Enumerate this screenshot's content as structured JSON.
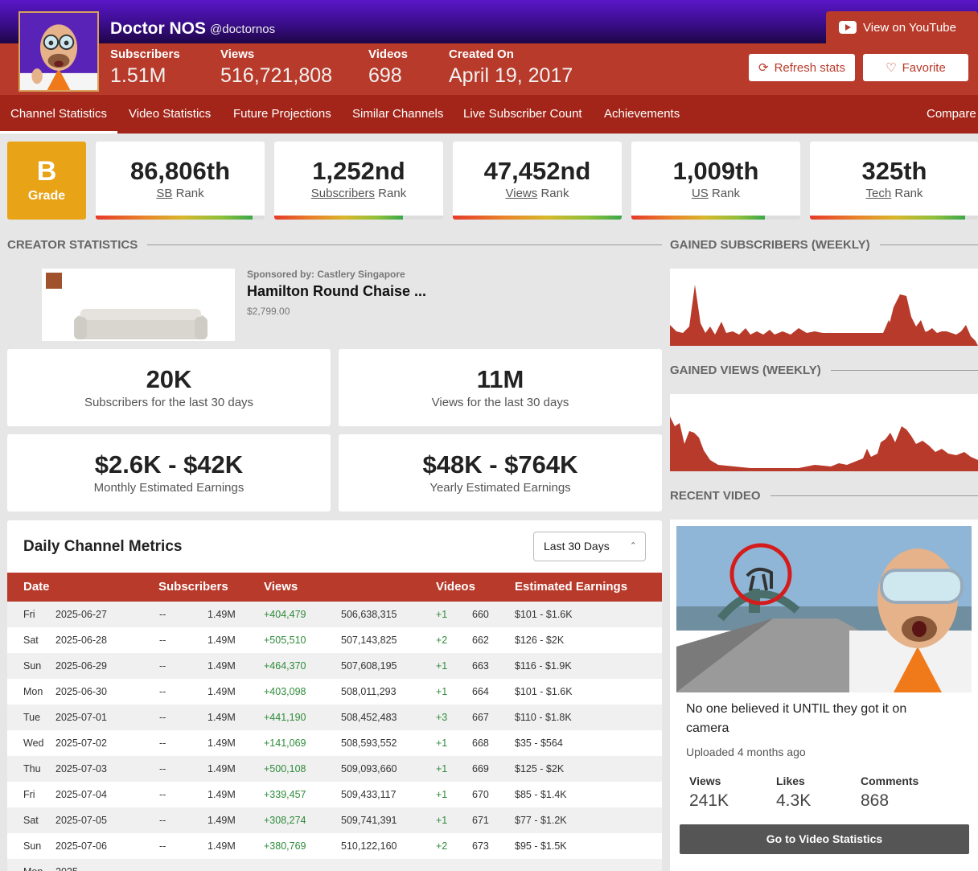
{
  "channel": {
    "name": "Doctor NOS",
    "handle": "@doctornos",
    "stats": [
      {
        "label": "Subscribers",
        "value": "1.51M"
      },
      {
        "label": "Views",
        "value": "516,721,808"
      },
      {
        "label": "Videos",
        "value": "698"
      },
      {
        "label": "Created On",
        "value": "April 19, 2017"
      }
    ]
  },
  "actions": {
    "youtube": "View on YouTube",
    "refresh": "Refresh stats",
    "favorite": "Favorite"
  },
  "nav": {
    "items": [
      "Channel Statistics",
      "Video Statistics",
      "Future Projections",
      "Similar Channels",
      "Live Subscriber Count",
      "Achievements"
    ],
    "compare": "Compare"
  },
  "grade": {
    "letter": "B",
    "label": "Grade"
  },
  "ranks": [
    {
      "value": "86,806th",
      "prefix": "SB",
      "suffix": "Rank",
      "fill": 0.93
    },
    {
      "value": "1,252nd",
      "prefix": "Subscribers",
      "suffix": "Rank",
      "fill": 0.76
    },
    {
      "value": "47,452nd",
      "prefix": "Views",
      "suffix": "Rank",
      "fill": 1.0
    },
    {
      "value": "1,009th",
      "prefix": "US",
      "suffix": "Rank",
      "fill": 0.79
    },
    {
      "value": "325th",
      "prefix": "Tech",
      "suffix": "Rank",
      "fill": 0.92
    }
  ],
  "sections": {
    "creator": "CREATOR STATISTICS",
    "gained_subs": "GAINED SUBSCRIBERS (WEEKLY)",
    "gained_views": "GAINED VIEWS (WEEKLY)",
    "recent_video": "RECENT VIDEO"
  },
  "sponsor": {
    "by": "Sponsored by: Castlery Singapore",
    "title": "Hamilton Round Chaise ...",
    "price": "$2,799.00"
  },
  "stat_cards": [
    {
      "value": "20K",
      "label": "Subscribers for the last 30 days"
    },
    {
      "value": "11M",
      "label": "Views for the last 30 days"
    },
    {
      "value": "$2.6K - $42K",
      "label": "Monthly Estimated Earnings"
    },
    {
      "value": "$48K - $764K",
      "label": "Yearly Estimated Earnings"
    }
  ],
  "metrics": {
    "title": "Daily Channel Metrics",
    "range": "Last 30 Days",
    "headers": [
      "Date",
      "Subscribers",
      "Views",
      "Videos",
      "Estimated Earnings"
    ],
    "rows": [
      [
        "Fri",
        "2025-06-27",
        "--",
        "1.49M",
        "+404,479",
        "506,638,315",
        "+1",
        "660",
        "$101 - $1.6K"
      ],
      [
        "Sat",
        "2025-06-28",
        "--",
        "1.49M",
        "+505,510",
        "507,143,825",
        "+2",
        "662",
        "$126 - $2K"
      ],
      [
        "Sun",
        "2025-06-29",
        "--",
        "1.49M",
        "+464,370",
        "507,608,195",
        "+1",
        "663",
        "$116 - $1.9K"
      ],
      [
        "Mon",
        "2025-06-30",
        "--",
        "1.49M",
        "+403,098",
        "508,011,293",
        "+1",
        "664",
        "$101 - $1.6K"
      ],
      [
        "Tue",
        "2025-07-01",
        "--",
        "1.49M",
        "+441,190",
        "508,452,483",
        "+3",
        "667",
        "$110 - $1.8K"
      ],
      [
        "Wed",
        "2025-07-02",
        "--",
        "1.49M",
        "+141,069",
        "508,593,552",
        "+1",
        "668",
        "$35 - $564"
      ],
      [
        "Thu",
        "2025-07-03",
        "--",
        "1.49M",
        "+500,108",
        "509,093,660",
        "+1",
        "669",
        "$125 - $2K"
      ],
      [
        "Fri",
        "2025-07-04",
        "--",
        "1.49M",
        "+339,457",
        "509,433,117",
        "+1",
        "670",
        "$85 - $1.4K"
      ],
      [
        "Sat",
        "2025-07-05",
        "--",
        "1.49M",
        "+308,274",
        "509,741,391",
        "+1",
        "671",
        "$77 - $1.2K"
      ],
      [
        "Sun",
        "2025-07-06",
        "--",
        "1.49M",
        "+380,769",
        "510,122,160",
        "+2",
        "673",
        "$95 - $1.5K"
      ],
      [
        "Mon",
        "2025-",
        "",
        "",
        "",
        "",
        "",
        "",
        ""
      ]
    ]
  },
  "recent_video": {
    "title": "No one believed it UNTIL they got it on camera",
    "uploaded": "Uploaded 4 months ago",
    "stats": [
      {
        "label": "Views",
        "value": "241K"
      },
      {
        "label": "Likes",
        "value": "4.3K"
      },
      {
        "label": "Comments",
        "value": "868"
      }
    ],
    "button": "Go to Video Statistics"
  },
  "colors": {
    "brand_red": "#b83a2a",
    "nav_red": "#a32519",
    "header_purple": "#4a12a8",
    "grade_orange": "#e8a317",
    "positive_green": "#2e8b3a"
  },
  "icons": [
    "youtube-icon",
    "refresh-icon",
    "heart-icon",
    "chevron-updown-icon"
  ]
}
